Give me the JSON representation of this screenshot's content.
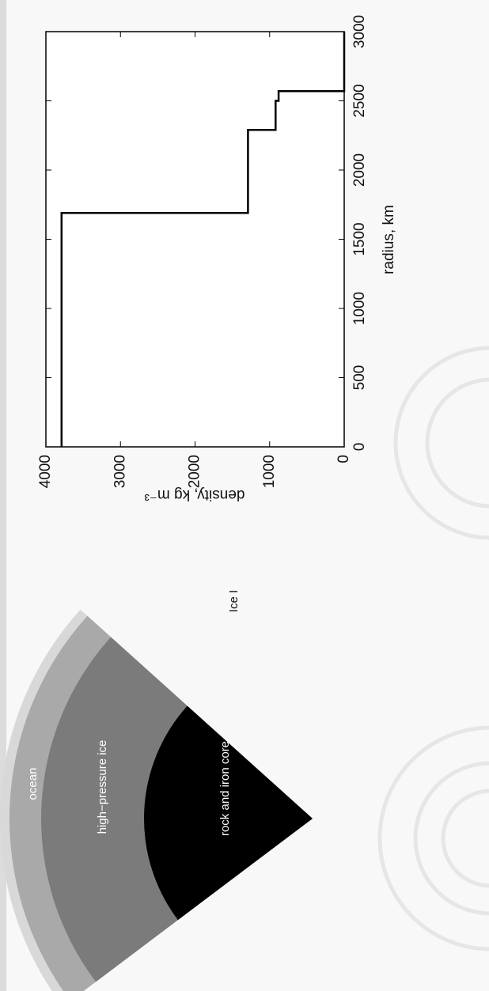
{
  "diagram": {
    "layers": [
      {
        "label": "Ice I"
      },
      {
        "label": "ocean"
      },
      {
        "label": "high−pressure ice"
      },
      {
        "label": "rock and iron core"
      }
    ]
  },
  "chart_data": {
    "type": "line",
    "x_label": "radius,  km",
    "y_label": "density,  kg m⁻³",
    "x": [
      0,
      1690,
      1690,
      2290,
      2290,
      2500,
      2500,
      2570,
      2570,
      3000
    ],
    "values": [
      3790,
      3790,
      1290,
      1290,
      920,
      920,
      880,
      880,
      0,
      0
    ],
    "color": "#000000",
    "xlim": [
      0,
      3000
    ],
    "xticks": [
      0,
      500,
      1000,
      1500,
      2000,
      2500,
      3000
    ],
    "ylim": [
      0,
      4000
    ],
    "yticks": [
      0,
      1000,
      2000,
      3000,
      4000
    ],
    "grid": false
  }
}
